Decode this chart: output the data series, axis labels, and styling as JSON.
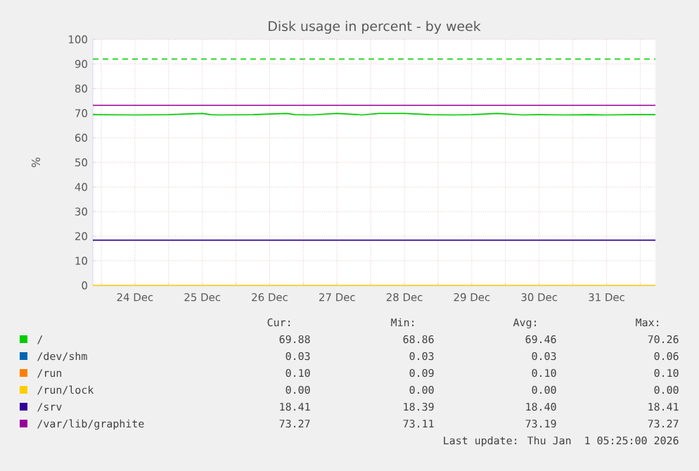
{
  "chart_data": {
    "type": "line",
    "title": "Disk usage in percent - by week",
    "ylabel": "%",
    "xlim": [
      "2025-12-23T21:00",
      "2026-01-01T05:25"
    ],
    "xticks": [
      {
        "value": "2025-12-24T00:00",
        "label": null
      },
      {
        "value": "2025-12-24T12:00",
        "label": "24 Dec"
      },
      {
        "value": "2025-12-25T00:00",
        "label": null
      },
      {
        "value": "2025-12-25T12:00",
        "label": "25 Dec"
      },
      {
        "value": "2025-12-26T00:00",
        "label": null
      },
      {
        "value": "2025-12-26T12:00",
        "label": "26 Dec"
      },
      {
        "value": "2025-12-27T00:00",
        "label": null
      },
      {
        "value": "2025-12-27T12:00",
        "label": "27 Dec"
      },
      {
        "value": "2025-12-28T00:00",
        "label": null
      },
      {
        "value": "2025-12-28T12:00",
        "label": "28 Dec"
      },
      {
        "value": "2025-12-29T00:00",
        "label": null
      },
      {
        "value": "2025-12-29T12:00",
        "label": "29 Dec"
      },
      {
        "value": "2025-12-30T00:00",
        "label": null
      },
      {
        "value": "2025-12-30T12:00",
        "label": "30 Dec"
      },
      {
        "value": "2025-12-31T00:00",
        "label": null
      },
      {
        "value": "2025-12-31T12:00",
        "label": "31 Dec"
      },
      {
        "value": "2026-01-01T00:00",
        "label": null
      }
    ],
    "ylim": [
      0,
      100
    ],
    "yticks": [
      0,
      10,
      20,
      30,
      40,
      50,
      60,
      70,
      80,
      90,
      100
    ],
    "grid": true,
    "legend": "bottom",
    "line_style": "solid",
    "series": [
      {
        "name": "/",
        "color": "#00cc00",
        "x": [
          "2025-12-23T21:00",
          "2025-12-24T12:00",
          "2025-12-25T00:00",
          "2025-12-25T12:00",
          "2025-12-25T15:00",
          "2025-12-25T18:00",
          "2025-12-26T06:00",
          "2025-12-26T18:00",
          "2025-12-26T21:00",
          "2025-12-27T03:00",
          "2025-12-27T12:00",
          "2025-12-27T21:00",
          "2025-12-28T03:00",
          "2025-12-28T12:00",
          "2025-12-28T21:00",
          "2025-12-29T06:00",
          "2025-12-29T12:00",
          "2025-12-29T21:00",
          "2025-12-30T06:00",
          "2025-12-30T12:00",
          "2025-12-30T21:00",
          "2025-12-31T06:00",
          "2025-12-31T12:00",
          "2025-12-31T21:00",
          "2026-01-01T05:25"
        ],
        "values": [
          69.4,
          69.3,
          69.4,
          69.9,
          69.4,
          69.3,
          69.4,
          69.9,
          69.4,
          69.3,
          69.9,
          69.3,
          69.9,
          69.9,
          69.4,
          69.3,
          69.4,
          69.9,
          69.3,
          69.4,
          69.3,
          69.4,
          69.3,
          69.4,
          69.4
        ]
      },
      {
        "name": "/dev/shm",
        "color": "#0066b3",
        "values": [
          null,
          null
        ]
      },
      {
        "name": "/run",
        "color": "#ff8000",
        "values": [
          null,
          null
        ]
      },
      {
        "name": "/run/lock",
        "color": "#ffcc00",
        "x": [
          "2025-12-23T21:00",
          "2026-01-01T05:25"
        ],
        "values": [
          0,
          0
        ]
      },
      {
        "name": "/srv",
        "color": "#330099",
        "x": [
          "2025-12-23T21:00",
          "2026-01-01T05:25"
        ],
        "values": [
          18.4,
          18.4
        ]
      },
      {
        "name": "/var/lib/graphite",
        "color": "#990099",
        "x": [
          "2025-12-23T21:00",
          "2026-01-01T05:25"
        ],
        "values": [
          73.2,
          73.2
        ]
      }
    ],
    "ref_lines": [
      {
        "axis": "y",
        "value": 92,
        "color": "#00cc00",
        "line_style": "dashed"
      }
    ],
    "annotations": [
      "Cur:",
      "Min:",
      "Avg:",
      "Max:",
      "69.88",
      "68.86",
      "69.46",
      "70.26",
      "0.03",
      "0.03",
      "0.03",
      "0.06",
      "0.10",
      "0.09",
      "0.10",
      "0.10",
      "0.00",
      "0.00",
      "0.00",
      "0.00",
      "18.41",
      "18.39",
      "18.40",
      "18.41",
      "73.27",
      "73.11",
      "73.19",
      "73.27",
      "Last update: Thu Jan  1 05:25:00 2026"
    ]
  }
}
